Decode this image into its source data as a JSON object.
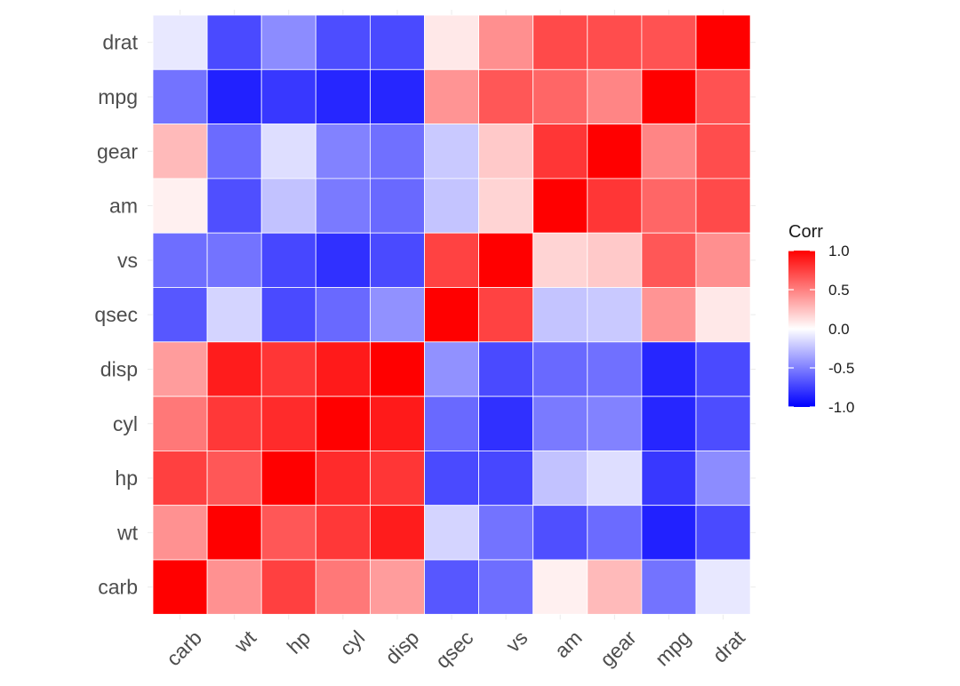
{
  "chart_data": {
    "type": "heatmap",
    "title": "",
    "xlabel": "",
    "ylabel": "",
    "x_categories": [
      "carb",
      "wt",
      "hp",
      "cyl",
      "disp",
      "qsec",
      "vs",
      "am",
      "gear",
      "mpg",
      "drat"
    ],
    "y_categories_top_to_bottom": [
      "drat",
      "mpg",
      "gear",
      "am",
      "vs",
      "qsec",
      "disp",
      "cyl",
      "hp",
      "wt",
      "carb"
    ],
    "values": [
      [
        -0.09,
        -0.71,
        -0.45,
        -0.7,
        -0.71,
        0.09,
        0.44,
        0.71,
        0.7,
        0.68,
        1.0
      ],
      [
        -0.55,
        -0.87,
        -0.78,
        -0.85,
        -0.85,
        0.42,
        0.66,
        0.6,
        0.48,
        1.0,
        0.68
      ],
      [
        0.27,
        -0.58,
        -0.13,
        -0.49,
        -0.56,
        -0.21,
        0.21,
        0.79,
        1.0,
        0.48,
        0.7
      ],
      [
        0.06,
        -0.69,
        -0.24,
        -0.52,
        -0.59,
        -0.23,
        0.17,
        1.0,
        0.79,
        0.6,
        0.71
      ],
      [
        -0.57,
        -0.55,
        -0.72,
        -0.81,
        -0.71,
        0.74,
        1.0,
        0.17,
        0.21,
        0.66,
        0.44
      ],
      [
        -0.66,
        -0.17,
        -0.71,
        -0.59,
        -0.43,
        1.0,
        0.74,
        -0.23,
        -0.21,
        0.42,
        0.09
      ],
      [
        0.39,
        0.89,
        0.79,
        0.9,
        1.0,
        -0.43,
        -0.71,
        -0.59,
        -0.56,
        -0.85,
        -0.71
      ],
      [
        0.53,
        0.78,
        0.83,
        1.0,
        0.9,
        -0.59,
        -0.81,
        -0.52,
        -0.49,
        -0.85,
        -0.7
      ],
      [
        0.75,
        0.66,
        1.0,
        0.83,
        0.79,
        -0.71,
        -0.72,
        -0.24,
        -0.13,
        -0.78,
        -0.45
      ],
      [
        0.43,
        1.0,
        0.66,
        0.78,
        0.89,
        -0.17,
        -0.55,
        -0.69,
        -0.58,
        -0.87,
        -0.71
      ],
      [
        1.0,
        0.43,
        0.75,
        0.53,
        0.39,
        -0.66,
        -0.57,
        0.06,
        0.27,
        -0.55,
        -0.09
      ]
    ],
    "color_scale": {
      "low": "#0000ff",
      "mid": "#ffffff",
      "high": "#ff0000",
      "limits": [
        -1,
        1
      ]
    },
    "legend": {
      "title": "Corr",
      "breaks": [
        1.0,
        0.5,
        0.0,
        -0.5,
        -1.0
      ],
      "labels": [
        "1.0",
        "0.5",
        "0.0",
        "-0.5",
        "-1.0"
      ],
      "placement": "right"
    },
    "grid": true,
    "cell_border_color": "#ffffff"
  }
}
